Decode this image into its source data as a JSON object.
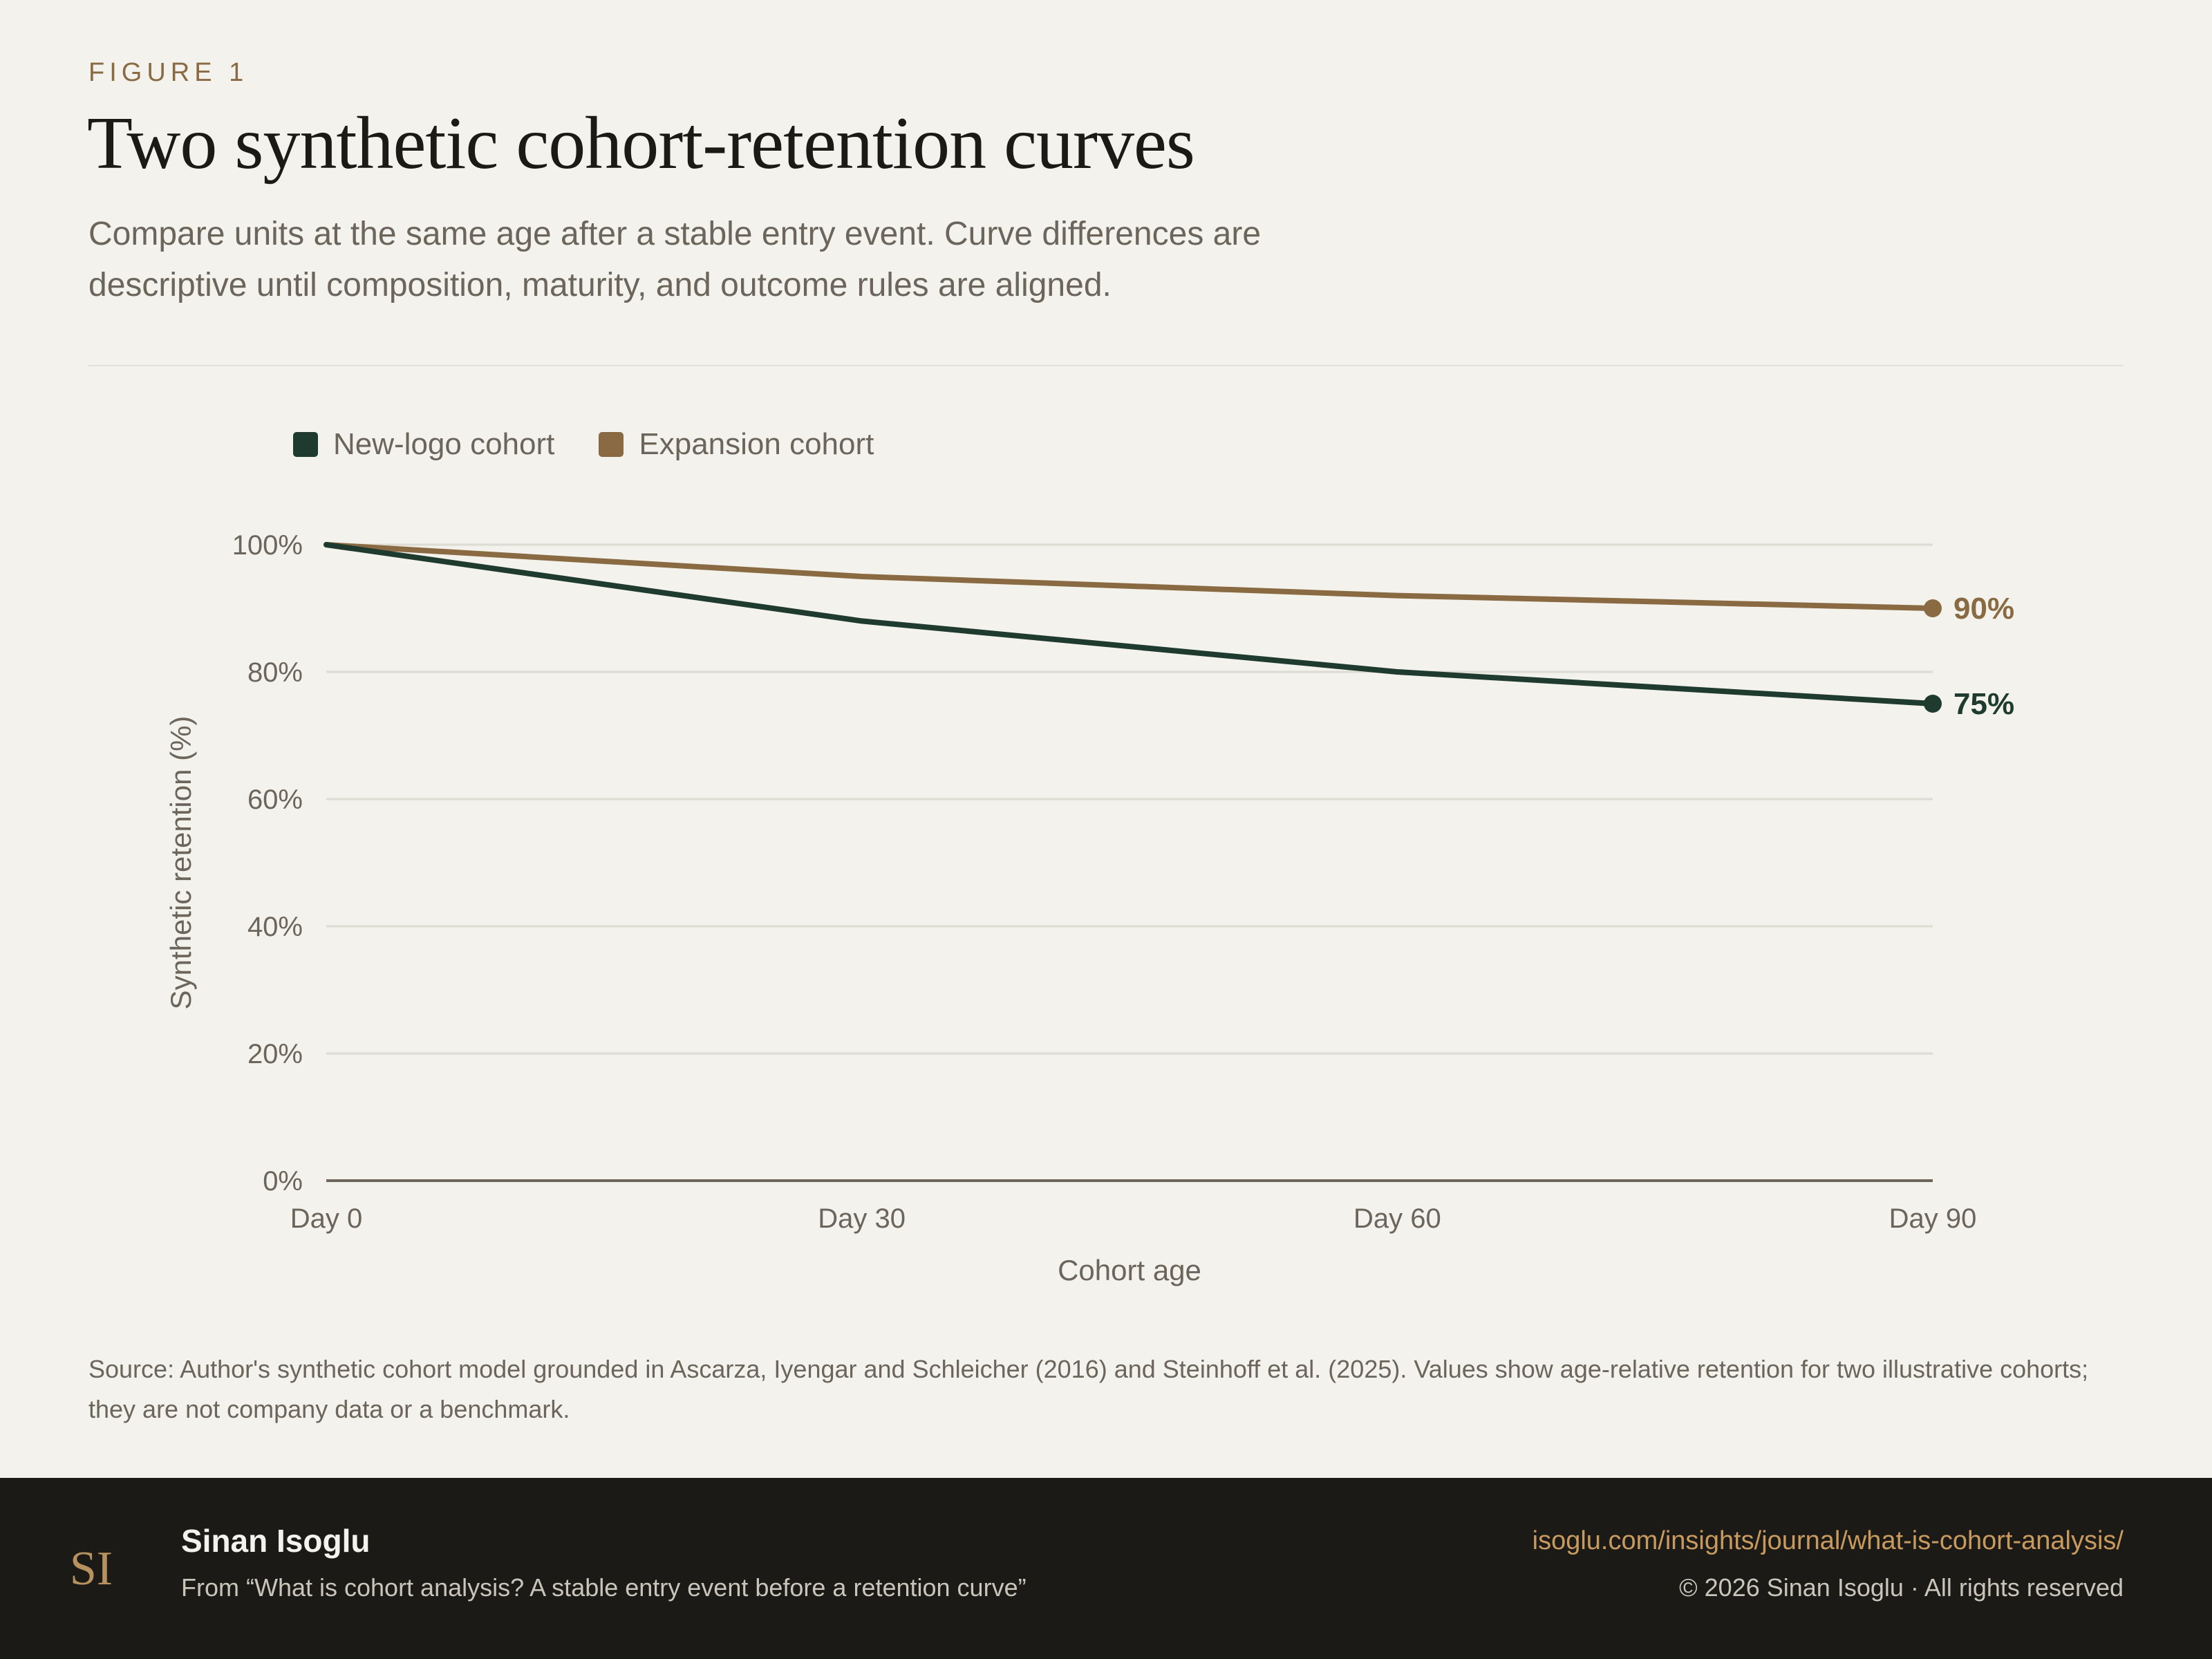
{
  "header": {
    "eyebrow": "FIGURE 1",
    "title": "Two synthetic cohort-retention curves",
    "subtitle": "Compare units at the same age after a stable entry event. Curve differences are descriptive until composition, maturity, and outcome rules are aligned."
  },
  "chart_data": {
    "type": "line",
    "x": [
      "Day 0",
      "Day 30",
      "Day 60",
      "Day 90"
    ],
    "xlabel": "Cohort age",
    "ylabel": "Synthetic retention (%)",
    "ylim": [
      0,
      100
    ],
    "yticks": [
      "0%",
      "20%",
      "40%",
      "60%",
      "80%",
      "100%"
    ],
    "grid": true,
    "legend": "top-left",
    "series": [
      {
        "name": "New-logo cohort",
        "values": [
          100,
          88,
          80,
          75
        ],
        "color": "#1f3a2e",
        "end_label": "75%"
      },
      {
        "name": "Expansion cohort",
        "values": [
          100,
          95,
          92,
          90
        ],
        "color": "#8a6a42",
        "end_label": "90%"
      }
    ]
  },
  "source": "Source: Author's synthetic cohort model grounded in Ascarza, Iyengar and Schleicher (2016) and Steinhoff et al. (2025). Values show age-relative retention for two illustrative cohorts; they are not company data or a benchmark.",
  "footer": {
    "logo_text": "SI",
    "author": "Sinan Isoglu",
    "article": "From “What is cohort analysis? A stable entry event before a retention curve”",
    "url": "isoglu.com/insights/journal/what-is-cohort-analysis/",
    "copyright": "© 2026 Sinan Isoglu · All rights reserved"
  }
}
